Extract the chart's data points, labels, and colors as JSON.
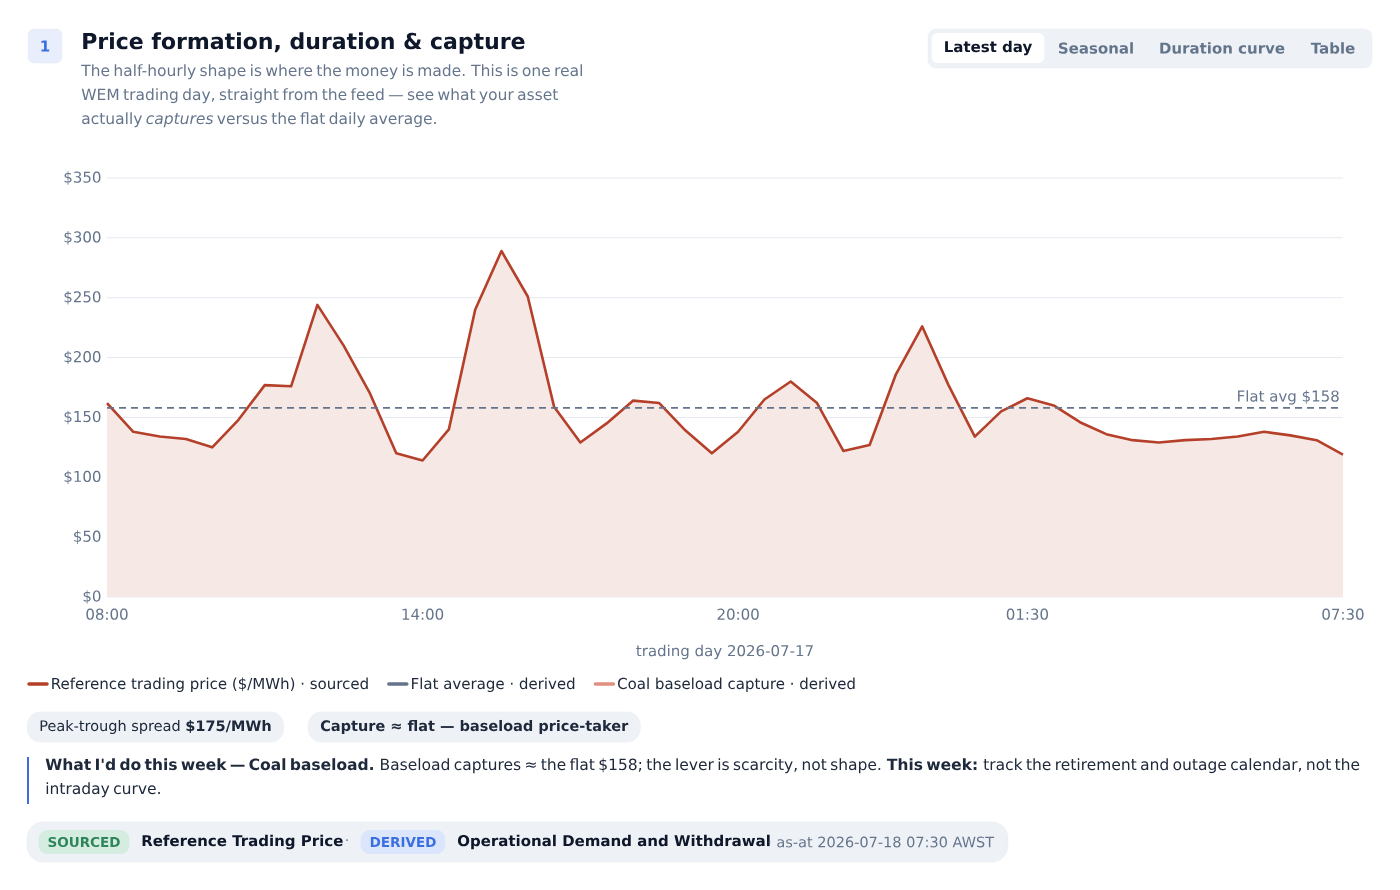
{
  "chart_data": {
    "type": "area",
    "title": "Price formation, duration & capture",
    "subtitle": "The half-hourly shape is where the money is made. This is one real WEM trading day, straight from the feed — see what your asset actually *captures* versus the flat daily average.",
    "xlabel": "trading day 2026-07-17",
    "categories": [
      "08:00",
      null,
      null,
      null,
      null,
      null,
      null,
      null,
      null,
      null,
      null,
      null,
      "14:00",
      null,
      null,
      null,
      null,
      null,
      null,
      null,
      null,
      null,
      null,
      null,
      "20:00",
      null,
      null,
      null,
      null,
      null,
      null,
      null,
      null,
      null,
      null,
      "01:30",
      null,
      null,
      null,
      null,
      null,
      null,
      null,
      null,
      null,
      null,
      null,
      "07:30"
    ],
    "series": [
      {
        "name": "Reference trading price ($/MWh) · sourced",
        "color": "#b5402a",
        "values": [
          162,
          138,
          134,
          132,
          125,
          148,
          177,
          176,
          244,
          210,
          170,
          120,
          114,
          140,
          240,
          289,
          251,
          159,
          129,
          145,
          164,
          162,
          139,
          120,
          138,
          165,
          180,
          162,
          122,
          127,
          186,
          226,
          177,
          134,
          155,
          166,
          160,
          146,
          136,
          131,
          129,
          131,
          132,
          134,
          138,
          135,
          131,
          119
        ]
      },
      {
        "name": "Flat average · derived",
        "type": "line",
        "line_style": "dashed",
        "color": "#64748b",
        "values": [
          158,
          158,
          158,
          158,
          158,
          158,
          158,
          158,
          158,
          158,
          158,
          158,
          158,
          158,
          158,
          158,
          158,
          158,
          158,
          158,
          158,
          158,
          158,
          158,
          158,
          158,
          158,
          158,
          158,
          158,
          158,
          158,
          158,
          158,
          158,
          158,
          158,
          158,
          158,
          158,
          158,
          158,
          158,
          158,
          158,
          158,
          158,
          158
        ]
      },
      {
        "name": "Coal baseload capture · derived",
        "type": "line",
        "color": "#e0907f",
        "values": [
          null,
          null,
          null,
          null,
          null,
          null,
          null,
          null,
          null,
          null,
          null,
          null,
          null,
          null,
          null,
          null,
          null,
          null,
          null,
          null,
          null,
          null,
          null,
          null,
          null,
          null,
          null,
          null,
          null,
          null,
          null,
          null,
          null,
          null,
          null,
          null,
          null,
          null,
          null,
          null,
          null,
          null,
          null,
          null,
          null,
          null,
          null,
          null
        ]
      }
    ],
    "ylim": [
      0,
      350
    ],
    "yticks": [
      {
        "value": 0,
        "label": "$0"
      },
      {
        "value": 50,
        "label": "$50"
      },
      {
        "value": 100,
        "label": "$100"
      },
      {
        "value": 150,
        "label": "$150"
      },
      {
        "value": 200,
        "label": "$200"
      },
      {
        "value": 250,
        "label": "$250"
      },
      {
        "value": 300,
        "label": "$300"
      },
      {
        "value": 350,
        "label": "$350"
      }
    ],
    "grid": "y",
    "legend": "bottom",
    "annotations": [
      "1",
      "Latest day",
      "Seasonal",
      "Duration curve",
      "Table",
      "Peak-trough spread **$175/MWh**",
      "Capture ≈ **flat** — baseload price-taker",
      "**What I'd do this week — Coal baseload.** Baseload captures ≈ the flat $158; the lever is scarcity, not shape. **This week:** track the retirement and outage calendar, not the intraday curve.",
      "SOURCED",
      "Reference Trading Price",
      "·",
      "DERIVED",
      "Operational Demand and Withdrawal",
      "· as-at 2026-07-18 07:30 AWST",
      {
        "text": "Flat avg $158",
        "y": 158
      }
    ]
  }
}
